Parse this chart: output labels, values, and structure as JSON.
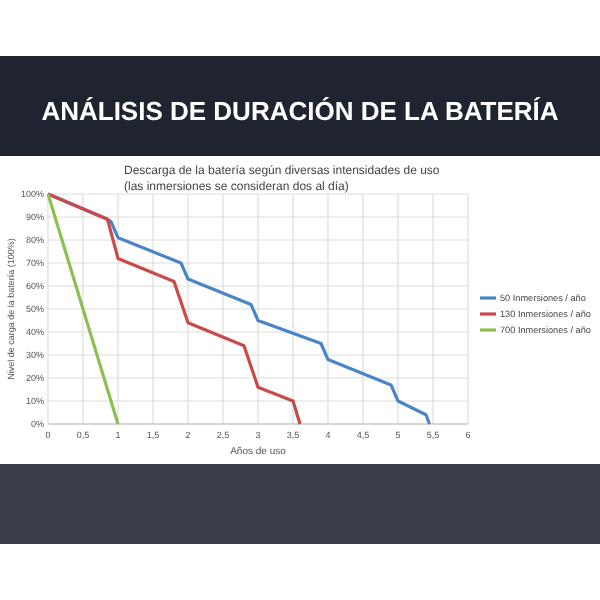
{
  "chart_data": {
    "type": "line",
    "title": "ANÁLISIS DE DURACIÓN DE LA BATERÍA",
    "subtitle": "Descarga de la batería según diversas intensidades de uso\n(las inmersiones se consideran dos al día)",
    "xlabel": "Años de uso",
    "ylabel": "Nivel de carga de la batería (100%)",
    "xlim": [
      0,
      6
    ],
    "ylim": [
      0,
      100
    ],
    "xticks": [
      0,
      {
        "value": 0.5,
        "label": "0,5"
      },
      1,
      {
        "value": 1.5,
        "label": "1,5"
      },
      2,
      {
        "value": 2.5,
        "label": "2,5"
      },
      3,
      {
        "value": 3.5,
        "label": "3,5"
      },
      4,
      {
        "value": 4.5,
        "label": "4,5"
      },
      5,
      {
        "value": 5.5,
        "label": "5,5"
      },
      6
    ],
    "yticks": [
      {
        "value": 0,
        "label": "0%"
      },
      {
        "value": 10,
        "label": "10%"
      },
      {
        "value": 20,
        "label": "20%"
      },
      {
        "value": 30,
        "label": "30%"
      },
      {
        "value": 40,
        "label": "40%"
      },
      {
        "value": 50,
        "label": "50%"
      },
      {
        "value": 60,
        "label": "60%"
      },
      {
        "value": 70,
        "label": "70%"
      },
      {
        "value": 80,
        "label": "80%"
      },
      {
        "value": 90,
        "label": "90%"
      },
      {
        "value": 100,
        "label": "100%"
      }
    ],
    "grid": true,
    "legend": "right",
    "line_style": "solid",
    "series": [
      {
        "name": "50 Inmersiones / año",
        "color": "#4a86c5",
        "x": [
          0,
          0.85,
          0.9,
          1,
          1.9,
          2,
          2.9,
          3,
          3.9,
          4,
          4.9,
          5,
          5.4,
          5.45
        ],
        "values": [
          100,
          89,
          88,
          81,
          70,
          63,
          52,
          45,
          35,
          28,
          17,
          10,
          4,
          0
        ]
      },
      {
        "name": "130 Inmersiones / año",
        "color": "#c94a4a",
        "x": [
          0,
          0.85,
          1,
          1.8,
          2,
          2.8,
          3,
          3.5,
          3.6
        ],
        "values": [
          100,
          89,
          72,
          62,
          44,
          34,
          16,
          10,
          0
        ]
      },
      {
        "name": "700 Inmersiones / año",
        "color": "#8cc152",
        "x": [
          0,
          1
        ],
        "values": [
          100,
          0
        ]
      }
    ]
  }
}
